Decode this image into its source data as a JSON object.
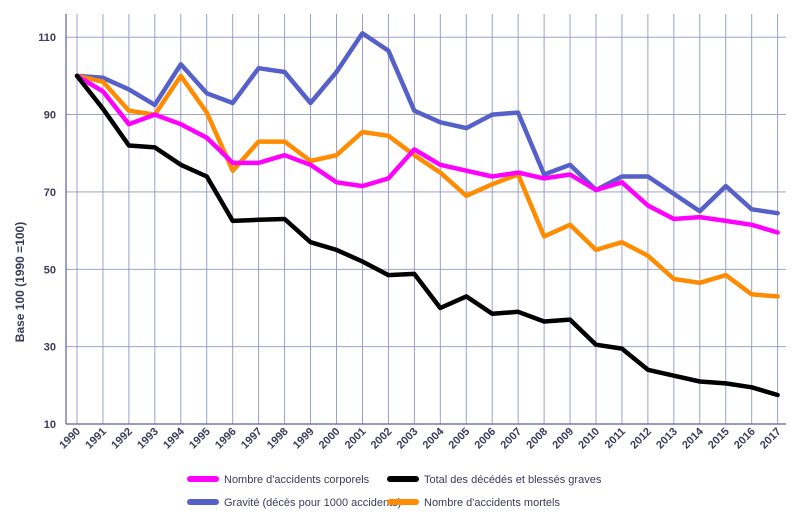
{
  "chart_data": {
    "type": "line",
    "ylabel": "Base 100 (1990 =100)",
    "ylim": [
      10,
      116
    ],
    "yticks": [
      10,
      30,
      50,
      70,
      90,
      110
    ],
    "grid": true,
    "legend_position": "bottom",
    "x": [
      "1990",
      "1991",
      "1992",
      "1993",
      "1994",
      "1995",
      "1996",
      "1997",
      "1998",
      "1999",
      "2000",
      "2001",
      "2002",
      "2003",
      "2004",
      "2005",
      "2006",
      "2007",
      "2008",
      "2009",
      "2010",
      "2011",
      "2012",
      "2013",
      "2014",
      "2015",
      "2016",
      "2017"
    ],
    "series": [
      {
        "name": "Nombre d'accidents corporels",
        "color": "#ff00ff",
        "values": [
          100,
          96,
          87.5,
          90,
          87.5,
          84,
          77.5,
          77.5,
          79.5,
          77,
          72.5,
          71.5,
          73.5,
          81,
          77,
          75.5,
          74,
          75,
          73.5,
          74.5,
          70.5,
          72.5,
          66.5,
          63,
          63.5,
          62.5,
          61.5,
          59.5
        ]
      },
      {
        "name": "Total des décédés et blessés graves",
        "color": "#000000",
        "values": [
          100,
          91.5,
          82,
          81.5,
          77,
          74,
          62.5,
          62.8,
          63,
          57,
          55,
          52,
          48.5,
          48.8,
          40,
          43,
          38.5,
          39,
          36.5,
          37,
          30.5,
          29.5,
          24,
          22.5,
          21,
          20.5,
          19.5,
          17.5
        ]
      },
      {
        "name": "Gravité (décès pour 1000 accidents)",
        "color": "#5561c9",
        "values": [
          100,
          99.5,
          96.5,
          92.5,
          103,
          95.5,
          93,
          102,
          101,
          93,
          101,
          111,
          106.5,
          91,
          88,
          86.5,
          90,
          90.5,
          74.5,
          77,
          70.5,
          74,
          74,
          69.5,
          65,
          71.5,
          65.5,
          64.5
        ]
      },
      {
        "name": "Nombre d'accidents mortels",
        "color": "#ff8c00",
        "values": [
          100,
          98.5,
          91,
          90,
          100,
          90.5,
          75.5,
          83,
          83,
          78,
          79.5,
          85.5,
          84.5,
          79.5,
          75,
          69,
          72,
          74.5,
          58.5,
          61.5,
          55,
          57,
          53.5,
          47.5,
          46.5,
          48.5,
          43.5,
          43
        ]
      }
    ]
  }
}
